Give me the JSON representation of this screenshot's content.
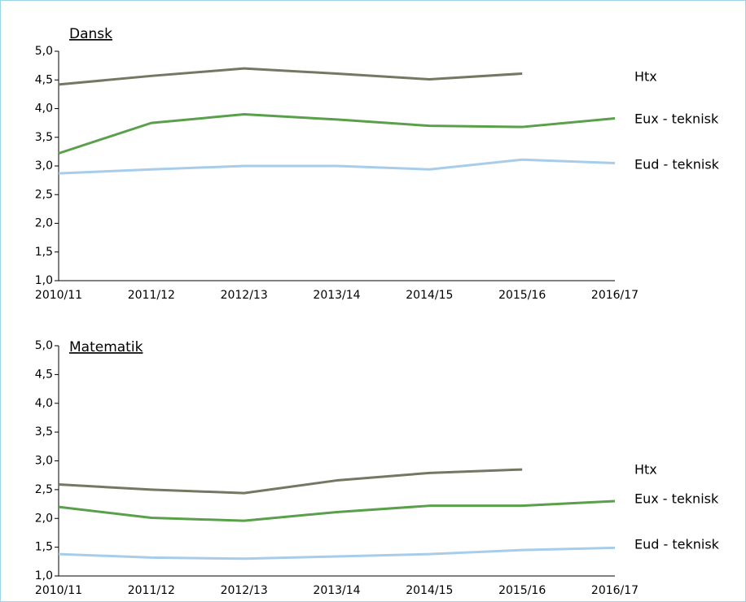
{
  "chart_data": [
    {
      "type": "line",
      "title": "Dansk",
      "categories": [
        "2010/11",
        "2011/12",
        "2012/13",
        "2013/14",
        "2014/15",
        "2015/16",
        "2016/17"
      ],
      "series": [
        {
          "name": "Htx",
          "color": "#767763",
          "values": [
            4.42,
            4.57,
            4.7,
            4.61,
            4.51,
            4.61,
            null
          ]
        },
        {
          "name": "Eux - teknisk",
          "color": "#5aa04a",
          "values": [
            3.22,
            3.75,
            3.9,
            3.81,
            3.7,
            3.68,
            3.83
          ]
        },
        {
          "name": "Eud - teknisk",
          "color": "#a7cdea",
          "values": [
            2.87,
            2.94,
            3.0,
            3.0,
            2.94,
            3.11,
            3.05
          ]
        }
      ],
      "ylim": [
        1,
        5
      ],
      "yticks": [
        {
          "value": 1,
          "label": "1,0"
        },
        {
          "value": 1.5,
          "label": "1,5"
        },
        {
          "value": 2,
          "label": "2,0"
        },
        {
          "value": 2.5,
          "label": "2,5"
        },
        {
          "value": 3,
          "label": "3,0"
        },
        {
          "value": 3.5,
          "label": "3,5"
        },
        {
          "value": 4,
          "label": "4,0"
        },
        {
          "value": 4.5,
          "label": "4,5"
        },
        {
          "value": 5,
          "label": "5,0"
        }
      ],
      "grid": false
    },
    {
      "type": "line",
      "title": "Matematik",
      "categories": [
        "2010/11",
        "2011/12",
        "2012/13",
        "2013/14",
        "2014/15",
        "2015/16",
        "2016/17"
      ],
      "series": [
        {
          "name": "Htx",
          "color": "#767763",
          "values": [
            2.59,
            2.5,
            2.44,
            2.66,
            2.79,
            2.85,
            null
          ]
        },
        {
          "name": "Eux - teknisk",
          "color": "#5aa04a",
          "values": [
            2.2,
            2.01,
            1.96,
            2.11,
            2.22,
            2.22,
            2.3
          ]
        },
        {
          "name": "Eud - teknisk",
          "color": "#a7cdea",
          "values": [
            1.38,
            1.32,
            1.3,
            1.34,
            1.38,
            1.45,
            1.49
          ]
        }
      ],
      "ylim": [
        1,
        5
      ],
      "yticks": [
        {
          "value": 1,
          "label": "1,0"
        },
        {
          "value": 1.5,
          "label": "1,5"
        },
        {
          "value": 2,
          "label": "2,0"
        },
        {
          "value": 2.5,
          "label": "2,5"
        },
        {
          "value": 3,
          "label": "3,0"
        },
        {
          "value": 3.5,
          "label": "3,5"
        },
        {
          "value": 4,
          "label": "4,0"
        },
        {
          "value": 4.5,
          "label": "4,5"
        },
        {
          "value": 5,
          "label": "5,0"
        }
      ],
      "grid": false
    }
  ]
}
